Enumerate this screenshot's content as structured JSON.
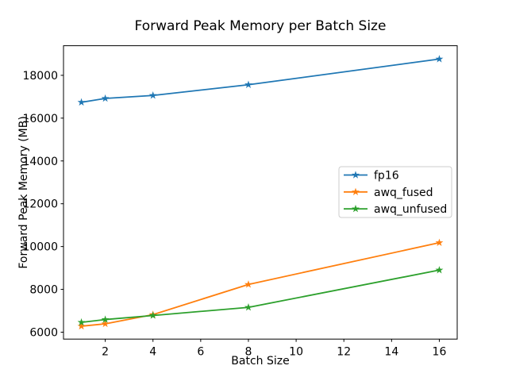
{
  "figure": {
    "background": "#ffffff"
  },
  "chart_data": {
    "type": "line",
    "title": "Forward Peak Memory per Batch Size",
    "xlabel": "Batch Size",
    "ylabel": "Forward Peak Memory (MB)",
    "x": [
      1,
      2,
      4,
      8,
      16
    ],
    "series": [
      {
        "name": "fp16",
        "color": "#1f77b4",
        "marker": "star",
        "values": [
          16740,
          16920,
          17060,
          17560,
          18760
        ]
      },
      {
        "name": "awq_fused",
        "color": "#ff7f0e",
        "marker": "star",
        "values": [
          6280,
          6390,
          6820,
          8230,
          10180
        ]
      },
      {
        "name": "awq_unfused",
        "color": "#2ca02c",
        "marker": "star",
        "values": [
          6460,
          6590,
          6780,
          7160,
          8900
        ]
      }
    ],
    "xlim": [
      0.25,
      16.75
    ],
    "ylim": [
      5677,
      19383
    ],
    "xticks": [
      2,
      4,
      6,
      8,
      10,
      12,
      14,
      16
    ],
    "yticks": [
      6000,
      8000,
      10000,
      12000,
      14000,
      16000,
      18000
    ],
    "grid": false,
    "legend": {
      "position": "center-right",
      "entries": [
        "fp16",
        "awq_fused",
        "awq_unfused"
      ],
      "border_color": "#cccccc",
      "background": "#ffffff"
    },
    "axis_color": "#000000",
    "text_color": "#000000"
  }
}
